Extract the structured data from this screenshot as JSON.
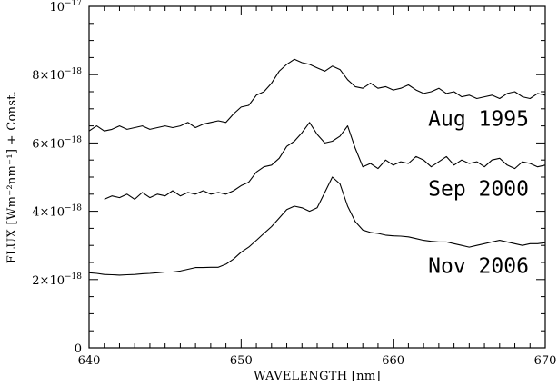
{
  "chart_data": {
    "type": "line",
    "title": "",
    "xlabel": "WAVELENGTH [nm]",
    "ylabel": "FLUX [Wm⁻²nm⁻¹] + Const.",
    "xlim": [
      640,
      670
    ],
    "ylim": [
      0,
      1e-17
    ],
    "grid": false,
    "legend": "none",
    "x_ticks": [
      {
        "value": 640,
        "label": "640"
      },
      {
        "value": 650,
        "label": "650"
      },
      {
        "value": 660,
        "label": "660"
      },
      {
        "value": 670,
        "label": "670"
      }
    ],
    "y_ticks": [
      {
        "value": 0,
        "label": "0"
      },
      {
        "value": 2e-18,
        "mant": "2×10",
        "exp": "−18"
      },
      {
        "value": 4e-18,
        "mant": "4×10",
        "exp": "−18"
      },
      {
        "value": 6e-18,
        "mant": "6×10",
        "exp": "−18"
      },
      {
        "value": 8e-18,
        "mant": "8×10",
        "exp": "−18"
      },
      {
        "value": 1e-17,
        "mant": "10",
        "exp": "−17"
      }
    ],
    "series": [
      {
        "name": "Aug 1995",
        "label_at": [
          662.3,
          6.5e-18
        ],
        "x": [
          640.0,
          640.5,
          641.0,
          641.5,
          642.0,
          642.5,
          643.0,
          643.5,
          644.0,
          644.5,
          645.0,
          645.5,
          646.0,
          646.5,
          647.0,
          647.5,
          648.0,
          648.5,
          649.0,
          649.5,
          650.0,
          650.5,
          651.0,
          651.5,
          652.0,
          652.5,
          653.0,
          653.5,
          654.0,
          654.5,
          655.0,
          655.5,
          656.0,
          656.5,
          657.0,
          657.5,
          658.0,
          658.5,
          659.0,
          659.5,
          660.0,
          660.5,
          661.0,
          661.5,
          662.0,
          662.5,
          663.0,
          663.5,
          664.0,
          664.5,
          665.0,
          665.5,
          666.0,
          666.5,
          667.0,
          667.5,
          668.0,
          668.5,
          669.0,
          669.5,
          670.0
        ],
        "y": [
          6.35e-18,
          6.5e-18,
          6.35e-18,
          6.4e-18,
          6.5e-18,
          6.4e-18,
          6.45e-18,
          6.5e-18,
          6.4e-18,
          6.45e-18,
          6.5e-18,
          6.45e-18,
          6.5e-18,
          6.6e-18,
          6.45e-18,
          6.55e-18,
          6.6e-18,
          6.65e-18,
          6.6e-18,
          6.85e-18,
          7.05e-18,
          7.1e-18,
          7.4e-18,
          7.5e-18,
          7.75e-18,
          8.1e-18,
          8.3e-18,
          8.45e-18,
          8.35e-18,
          8.3e-18,
          8.2e-18,
          8.1e-18,
          8.25e-18,
          8.15e-18,
          7.85e-18,
          7.65e-18,
          7.6e-18,
          7.75e-18,
          7.6e-18,
          7.65e-18,
          7.55e-18,
          7.6e-18,
          7.7e-18,
          7.55e-18,
          7.45e-18,
          7.5e-18,
          7.6e-18,
          7.45e-18,
          7.5e-18,
          7.35e-18,
          7.4e-18,
          7.3e-18,
          7.35e-18,
          7.4e-18,
          7.3e-18,
          7.45e-18,
          7.5e-18,
          7.35e-18,
          7.3e-18,
          7.45e-18,
          7.4e-18
        ]
      },
      {
        "name": "Sep 2000",
        "label_at": [
          662.3,
          4.45e-18
        ],
        "x": [
          641.0,
          641.5,
          642.0,
          642.5,
          643.0,
          643.5,
          644.0,
          644.5,
          645.0,
          645.5,
          646.0,
          646.5,
          647.0,
          647.5,
          648.0,
          648.5,
          649.0,
          649.5,
          650.0,
          650.5,
          651.0,
          651.5,
          652.0,
          652.5,
          653.0,
          653.5,
          654.0,
          654.5,
          655.0,
          655.5,
          656.0,
          656.5,
          657.0,
          657.5,
          658.0,
          658.5,
          659.0,
          659.5,
          660.0,
          660.5,
          661.0,
          661.5,
          662.0,
          662.5,
          663.0,
          663.5,
          664.0,
          664.5,
          665.0,
          665.5,
          666.0,
          666.5,
          667.0,
          667.5,
          668.0,
          668.5,
          669.0,
          669.5,
          670.0
        ],
        "y": [
          4.35e-18,
          4.45e-18,
          4.4e-18,
          4.5e-18,
          4.35e-18,
          4.55e-18,
          4.4e-18,
          4.5e-18,
          4.45e-18,
          4.6e-18,
          4.45e-18,
          4.55e-18,
          4.5e-18,
          4.6e-18,
          4.5e-18,
          4.55e-18,
          4.5e-18,
          4.6e-18,
          4.75e-18,
          4.85e-18,
          5.15e-18,
          5.3e-18,
          5.35e-18,
          5.55e-18,
          5.9e-18,
          6.05e-18,
          6.3e-18,
          6.6e-18,
          6.25e-18,
          6e-18,
          6.05e-18,
          6.2e-18,
          6.5e-18,
          5.85e-18,
          5.3e-18,
          5.4e-18,
          5.25e-18,
          5.5e-18,
          5.35e-18,
          5.45e-18,
          5.4e-18,
          5.6e-18,
          5.5e-18,
          5.3e-18,
          5.45e-18,
          5.6e-18,
          5.35e-18,
          5.5e-18,
          5.4e-18,
          5.45e-18,
          5.3e-18,
          5.5e-18,
          5.55e-18,
          5.35e-18,
          5.25e-18,
          5.45e-18,
          5.4e-18,
          5.3e-18,
          5.35e-18
        ]
      },
      {
        "name": "Nov 2006",
        "label_at": [
          662.3,
          2.2e-18
        ],
        "x": [
          640.0,
          640.5,
          641.0,
          641.5,
          642.0,
          642.5,
          643.0,
          643.5,
          644.0,
          644.5,
          645.0,
          645.5,
          646.0,
          646.5,
          647.0,
          647.5,
          648.0,
          648.5,
          649.0,
          649.5,
          650.0,
          650.5,
          651.0,
          651.5,
          652.0,
          652.5,
          653.0,
          653.5,
          654.0,
          654.5,
          655.0,
          655.5,
          656.0,
          656.5,
          657.0,
          657.5,
          658.0,
          658.5,
          659.0,
          659.5,
          660.0,
          660.5,
          661.0,
          661.5,
          662.0,
          662.5,
          663.0,
          663.5,
          664.0,
          664.5,
          665.0,
          665.5,
          666.0,
          666.5,
          667.0,
          667.5,
          668.0,
          668.5,
          669.0,
          669.5,
          670.0
        ],
        "y": [
          2.2e-18,
          2.18e-18,
          2.15e-18,
          2.14e-18,
          2.13e-18,
          2.14e-18,
          2.15e-18,
          2.17e-18,
          2.18e-18,
          2.2e-18,
          2.22e-18,
          2.22e-18,
          2.25e-18,
          2.3e-18,
          2.35e-18,
          2.35e-18,
          2.36e-18,
          2.36e-18,
          2.45e-18,
          2.6e-18,
          2.8e-18,
          2.95e-18,
          3.15e-18,
          3.35e-18,
          3.55e-18,
          3.8e-18,
          4.05e-18,
          4.15e-18,
          4.1e-18,
          4e-18,
          4.1e-18,
          4.55e-18,
          5e-18,
          4.8e-18,
          4.15e-18,
          3.7e-18,
          3.45e-18,
          3.38e-18,
          3.35e-18,
          3.3e-18,
          3.28e-18,
          3.27e-18,
          3.25e-18,
          3.2e-18,
          3.15e-18,
          3.12e-18,
          3.1e-18,
          3.1e-18,
          3.05e-18,
          3e-18,
          2.95e-18,
          3e-18,
          3.05e-18,
          3.1e-18,
          3.15e-18,
          3.1e-18,
          3.05e-18,
          3e-18,
          3.05e-18,
          3.05e-18,
          3.08e-18
        ]
      }
    ]
  }
}
